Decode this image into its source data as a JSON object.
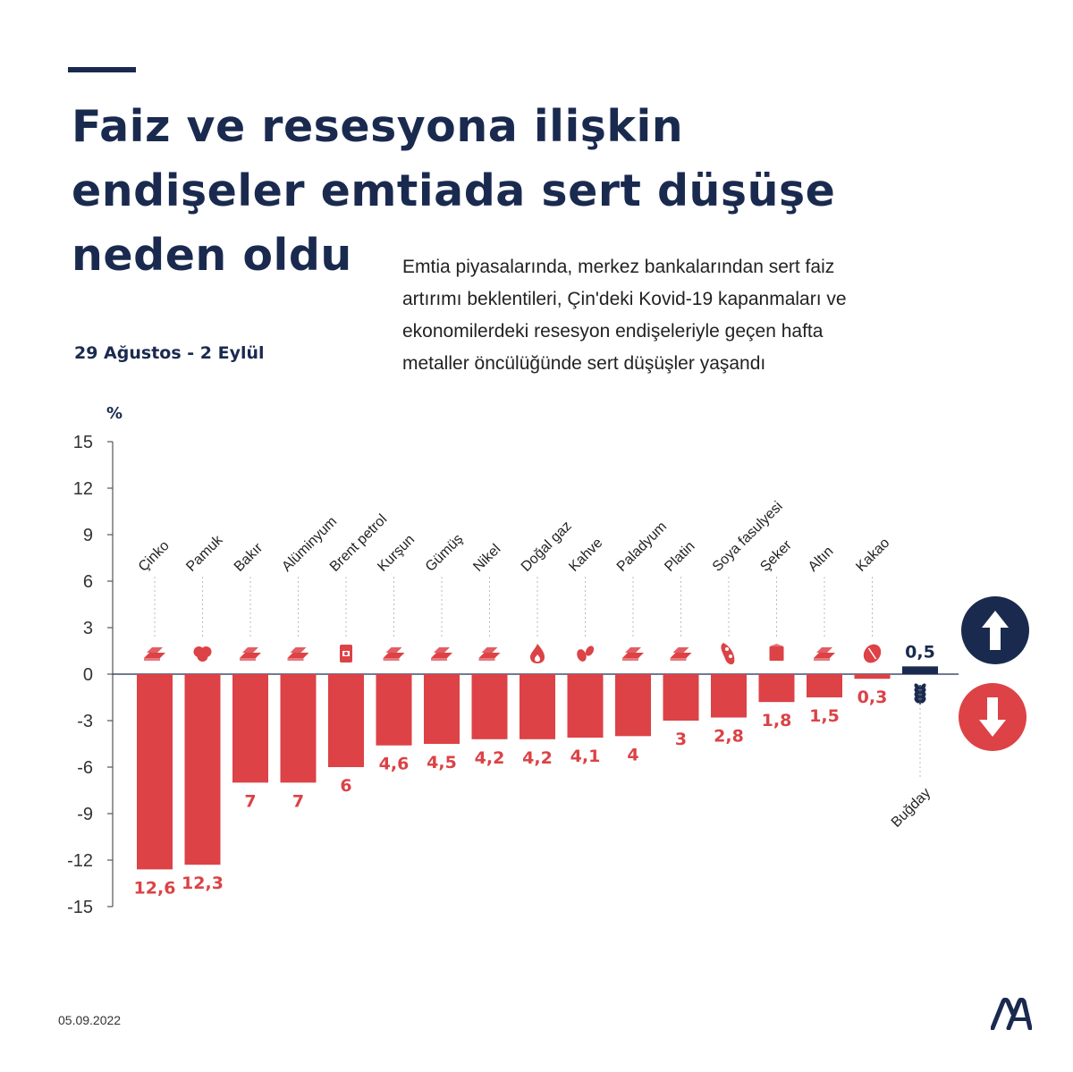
{
  "header": {
    "title_lines": [
      "Faiz ve resesyona ilişkin",
      "endişeler emtiada sert düşüşe",
      "neden oldu"
    ],
    "subtitle_lines": [
      "Emtia piyasalarında, merkez bankalarından sert faiz",
      "artırımı beklentileri, Çin'deki Kovid-19 kapanmaları ve",
      "ekonomilerdeki resesyon endişeleriyle geçen hafta",
      "metaller öncülüğünde sert düşüşler yaşandı"
    ],
    "date_range": "29 Ağustos - 2 Eylül"
  },
  "footer": {
    "date": "05.09.2022",
    "logo_text": "AA"
  },
  "colors": {
    "down": "#dc4246",
    "up": "#1a2a4f",
    "text_dark": "#1a2a4f"
  },
  "legend_icons": {
    "up": "arrow-up-icon",
    "down": "arrow-down-icon"
  },
  "chart_data": {
    "type": "bar",
    "ylabel": "%",
    "ylim": [
      -15,
      15
    ],
    "yticks": [
      15,
      12,
      9,
      6,
      3,
      0,
      -3,
      -6,
      -9,
      -12,
      -15
    ],
    "categories": [
      "Çinko",
      "Pamuk",
      "Bakır",
      "Alüminyum",
      "Brent petrol",
      "Kurşun",
      "Gümüş",
      "Nikel",
      "Doğal gaz",
      "Kahve",
      "Paladyum",
      "Platin",
      "Soya fasulyesi",
      "Şeker",
      "Altın",
      "Kakao",
      "Buğday"
    ],
    "values": [
      -12.6,
      -12.3,
      -7,
      -7,
      -6,
      -4.6,
      -4.5,
      -4.2,
      -4.2,
      -4.1,
      -4,
      -3,
      -2.8,
      -1.8,
      -1.5,
      -0.3,
      0.5
    ],
    "value_labels": [
      "12,6",
      "12,3",
      "7",
      "7",
      "6",
      "4,6",
      "4,5",
      "4,2",
      "4,2",
      "4,1",
      "4",
      "3",
      "2,8",
      "1,8",
      "1,5",
      "0,3",
      "0,5"
    ],
    "icons": [
      "metal-bars-icon",
      "cotton-icon",
      "metal-bars-icon",
      "metal-bars-icon",
      "oil-barrel-icon",
      "metal-bars-icon",
      "metal-bars-icon",
      "metal-bars-icon",
      "flame-icon",
      "coffee-bean-icon",
      "metal-bars-icon",
      "metal-bars-icon",
      "soybean-icon",
      "sugar-icon",
      "metal-bars-icon",
      "cocoa-icon",
      "wheat-icon"
    ]
  }
}
